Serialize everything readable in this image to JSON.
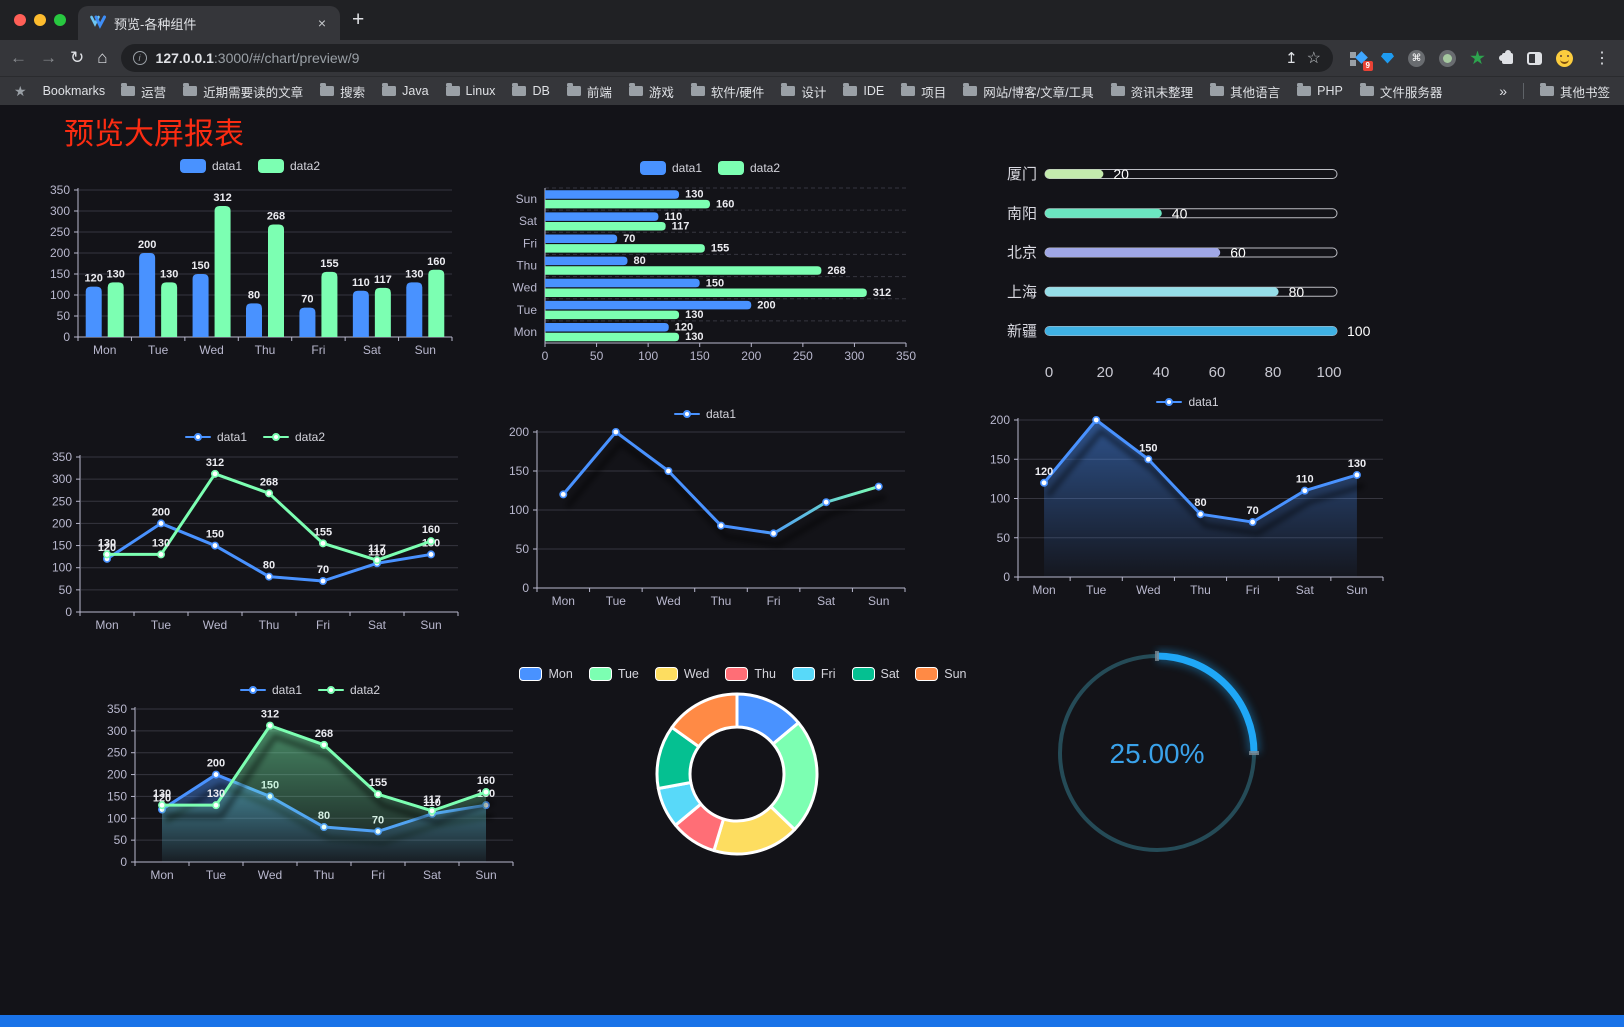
{
  "browser": {
    "tab": {
      "title": "预览-各种组件",
      "close": "×"
    },
    "new_tab": "+",
    "nav": {
      "back": "←",
      "forward": "→",
      "reload": "↻",
      "home": "⌂"
    },
    "url": {
      "info": "i",
      "host": "127.0.0.1",
      "rest": ":3000/#/chart/preview/9",
      "share": "↥",
      "star": "☆"
    },
    "ext": {
      "badge": "9",
      "cmd": "⌘"
    },
    "menu": "⋮",
    "bookmarks": {
      "star": "★",
      "label": "Bookmarks",
      "items": [
        "运营",
        "近期需要读的文章",
        "搜索",
        "Java",
        "Linux",
        "DB",
        "前端",
        "游戏",
        "软件/硬件",
        "设计",
        "IDE",
        "项目",
        "网站/博客/文章/工具",
        "资讯未整理",
        "其他语言",
        "PHP",
        "文件服务器"
      ],
      "overflow": "»",
      "other": "其他书签"
    }
  },
  "page": {
    "title": "预览大屏报表",
    "title_color": "#fb2c12",
    "footer_color": "#1a73e8"
  },
  "chart_data": [
    {
      "id": "bar-grouped",
      "type": "bar",
      "categories": [
        "Mon",
        "Tue",
        "Wed",
        "Thu",
        "Fri",
        "Sat",
        "Sun"
      ],
      "series": [
        {
          "name": "data1",
          "color": "#4992ff",
          "values": [
            120,
            200,
            150,
            80,
            70,
            110,
            130
          ]
        },
        {
          "name": "data2",
          "color": "#7cffb2",
          "values": [
            130,
            130,
            312,
            268,
            155,
            117,
            160
          ]
        }
      ],
      "ylim": [
        0,
        350
      ],
      "ystep": 50,
      "legend_position": "top",
      "grid": true
    },
    {
      "id": "bar-horizontal",
      "type": "bar",
      "orientation": "horizontal",
      "categories_top_to_bottom": [
        "Sun",
        "Sat",
        "Fri",
        "Thu",
        "Wed",
        "Tue",
        "Mon"
      ],
      "series": [
        {
          "name": "data1",
          "color": "#4992ff",
          "values_top_to_bottom": [
            130,
            110,
            70,
            80,
            150,
            200,
            120
          ]
        },
        {
          "name": "data2",
          "color": "#7cffb2",
          "values_top_to_bottom": [
            160,
            117,
            155,
            268,
            312,
            130,
            130
          ]
        }
      ],
      "xlim": [
        0,
        350
      ],
      "xstep": 50,
      "legend_position": "top"
    },
    {
      "id": "progress-bars",
      "type": "bar",
      "orientation": "horizontal-progress",
      "items": [
        {
          "label": "厦门",
          "value": 20,
          "color": "#c4ebad"
        },
        {
          "label": "南阳",
          "value": 40,
          "color": "#6be6c1"
        },
        {
          "label": "北京",
          "value": 60,
          "color": "#a0a7e6"
        },
        {
          "label": "上海",
          "value": 80,
          "color": "#96dee8"
        },
        {
          "label": "新疆",
          "value": 100,
          "color": "#3fb1e3"
        }
      ],
      "xlim": [
        0,
        100
      ],
      "xticks": [
        0,
        20,
        40,
        60,
        80,
        100
      ]
    },
    {
      "id": "line-two-series",
      "type": "line",
      "categories": [
        "Mon",
        "Tue",
        "Wed",
        "Thu",
        "Fri",
        "Sat",
        "Sun"
      ],
      "series": [
        {
          "name": "data1",
          "color": "#4992ff",
          "values": [
            120,
            200,
            150,
            80,
            70,
            110,
            130
          ]
        },
        {
          "name": "data2",
          "color": "#7cffb2",
          "values": [
            130,
            130,
            312,
            268,
            155,
            117,
            160
          ]
        }
      ],
      "ylim": [
        0,
        350
      ],
      "ystep": 50,
      "labels": true,
      "shadow": false,
      "legend_position": "top"
    },
    {
      "id": "line-gradient",
      "type": "line",
      "categories": [
        "Mon",
        "Tue",
        "Wed",
        "Thu",
        "Fri",
        "Sat",
        "Sun"
      ],
      "series": [
        {
          "name": "data1",
          "color": "#4992ff",
          "color_gradient": [
            "#4992ff",
            "#7cffb2"
          ],
          "values": [
            120,
            200,
            150,
            80,
            70,
            110,
            130
          ]
        }
      ],
      "ylim": [
        0,
        200
      ],
      "ystep": 50,
      "labels": false,
      "shadow": true,
      "legend_position": "top"
    },
    {
      "id": "line-area-blue",
      "type": "area",
      "categories": [
        "Mon",
        "Tue",
        "Wed",
        "Thu",
        "Fri",
        "Sat",
        "Sun"
      ],
      "series": [
        {
          "name": "data1",
          "color": "#4992ff",
          "area": true,
          "values": [
            120,
            200,
            150,
            80,
            70,
            110,
            130
          ]
        }
      ],
      "ylim": [
        0,
        200
      ],
      "ystep": 50,
      "labels": true,
      "shadow": true,
      "legend_position": "top"
    },
    {
      "id": "line-area-two-series",
      "type": "area",
      "categories": [
        "Mon",
        "Tue",
        "Wed",
        "Thu",
        "Fri",
        "Sat",
        "Sun"
      ],
      "series": [
        {
          "name": "data1",
          "color": "#4992ff",
          "area": true,
          "values": [
            120,
            200,
            150,
            80,
            70,
            110,
            130
          ]
        },
        {
          "name": "data2",
          "color": "#7cffb2",
          "area": true,
          "values": [
            130,
            130,
            312,
            268,
            155,
            117,
            160
          ]
        }
      ],
      "ylim": [
        0,
        350
      ],
      "ystep": 50,
      "labels": true,
      "shadow": true,
      "legend_position": "top"
    },
    {
      "id": "donut",
      "type": "pie",
      "categories": [
        "Mon",
        "Tue",
        "Wed",
        "Thu",
        "Fri",
        "Sat",
        "Sun"
      ],
      "values": [
        120,
        200,
        150,
        80,
        70,
        110,
        130
      ],
      "colors": [
        "#4992ff",
        "#7cffb2",
        "#fddd60",
        "#ff6e76",
        "#58d9f9",
        "#05c091",
        "#ff8a45"
      ],
      "inner_radius": 47,
      "outer_radius": 80,
      "legend_position": "top"
    },
    {
      "id": "gauge",
      "type": "gauge",
      "value": 25,
      "label": "25.00%",
      "color": "#1fa7f7",
      "track_color": "#254b57",
      "text_color": "#3aa2ea"
    }
  ]
}
